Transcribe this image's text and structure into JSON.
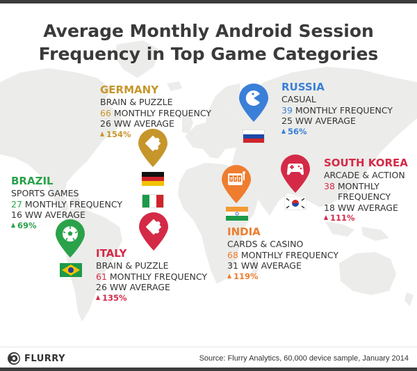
{
  "title_line1": "Average Monthly Android Session",
  "title_line2": "Frequency in Top Game Categories",
  "colors": {
    "germany": "#c6962b",
    "russia": "#3a7fd8",
    "brazil": "#2aa24a",
    "italy": "#d42a47",
    "india": "#ee7d2f",
    "south_korea": "#d42a47",
    "map_land": "#ececea"
  },
  "regions": {
    "germany": {
      "country": "GERMANY",
      "category": "BRAIN & PUZZLE",
      "monthly_value": "66",
      "monthly_label": "MONTHLY FREQUENCY",
      "ww_value": "26",
      "ww_label": "WW AVERAGE",
      "change": "154%",
      "icon": "puzzle-icon"
    },
    "russia": {
      "country": "RUSSIA",
      "category": "CASUAL",
      "monthly_value": "39",
      "monthly_label": "MONTHLY FREQUENCY",
      "ww_value": "25",
      "ww_label": "WW AVERAGE",
      "change": "56%",
      "icon": "pacman-icon"
    },
    "brazil": {
      "country": "BRAZIL",
      "category": "SPORTS GAMES",
      "monthly_value": "27",
      "monthly_label": "MONTHLY FREQUENCY",
      "ww_value": "16",
      "ww_label": "WW AVERAGE",
      "change": "69%",
      "icon": "soccer-ball-icon"
    },
    "italy": {
      "country": "ITALY",
      "category": "BRAIN & PUZZLE",
      "monthly_value": "61",
      "monthly_label": "MONTHLY FREQUENCY",
      "ww_value": "26",
      "ww_label": "WW AVERAGE",
      "change": "135%",
      "icon": "puzzle-icon"
    },
    "india": {
      "country": "INDIA",
      "category": "CARDS & CASINO",
      "monthly_value": "68",
      "monthly_label": "MONTHLY FREQUENCY",
      "ww_value": "31",
      "ww_label": "WW AVERAGE",
      "change": "119%",
      "icon": "slot-machine-icon"
    },
    "south_korea": {
      "country": "SOUTH KOREA",
      "category": "ARCADE & ACTION",
      "monthly_value": "38",
      "monthly_label_line1": "MONTHLY",
      "monthly_label_line2": "FREQUENCY",
      "ww_value": "18",
      "ww_label": "WW AVERAGE",
      "change": "111%",
      "icon": "gamepad-icon"
    }
  },
  "footer": {
    "logo_text": "FLURRY",
    "source": "Source: Flurry Analytics, 60,000 device sample, January 2014"
  }
}
